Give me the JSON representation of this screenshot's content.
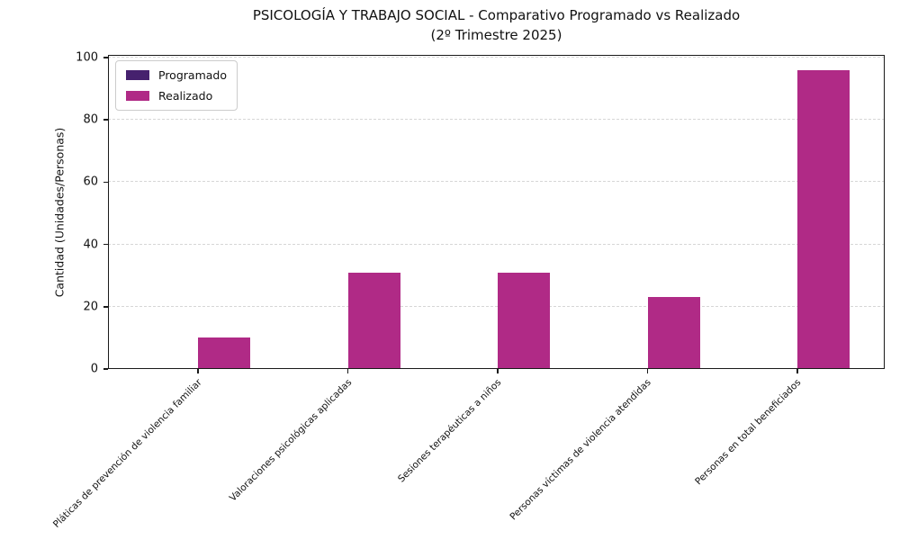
{
  "title": {
    "line1": "PSICOLOGÍA Y TRABAJO SOCIAL - Comparativo Programado vs Realizado",
    "line2": "(2º Trimestre 2025)"
  },
  "chart_data": {
    "type": "bar",
    "categories": [
      "Pláticas de prevención de violencia familiar",
      "Valoraciones psicológicas aplicadas",
      "Sesiones terapéuticas a niños",
      "Personas víctimas de violencia atendidas",
      "Personas en total beneficiados"
    ],
    "series": [
      {
        "name": "Programado",
        "color": "#46216e",
        "values": [
          0,
          0,
          0,
          0,
          0
        ]
      },
      {
        "name": "Realizado",
        "color": "#b02a86",
        "values": [
          10,
          31,
          31,
          23,
          96
        ]
      }
    ],
    "xlabel": "",
    "ylabel": "Cantidad (Unidades/Personas)",
    "ylim": [
      0,
      100.8
    ],
    "yticks": [
      0,
      20,
      40,
      60,
      80,
      100
    ],
    "grid": "horizontal-dashed",
    "legend_position": "upper-left"
  }
}
